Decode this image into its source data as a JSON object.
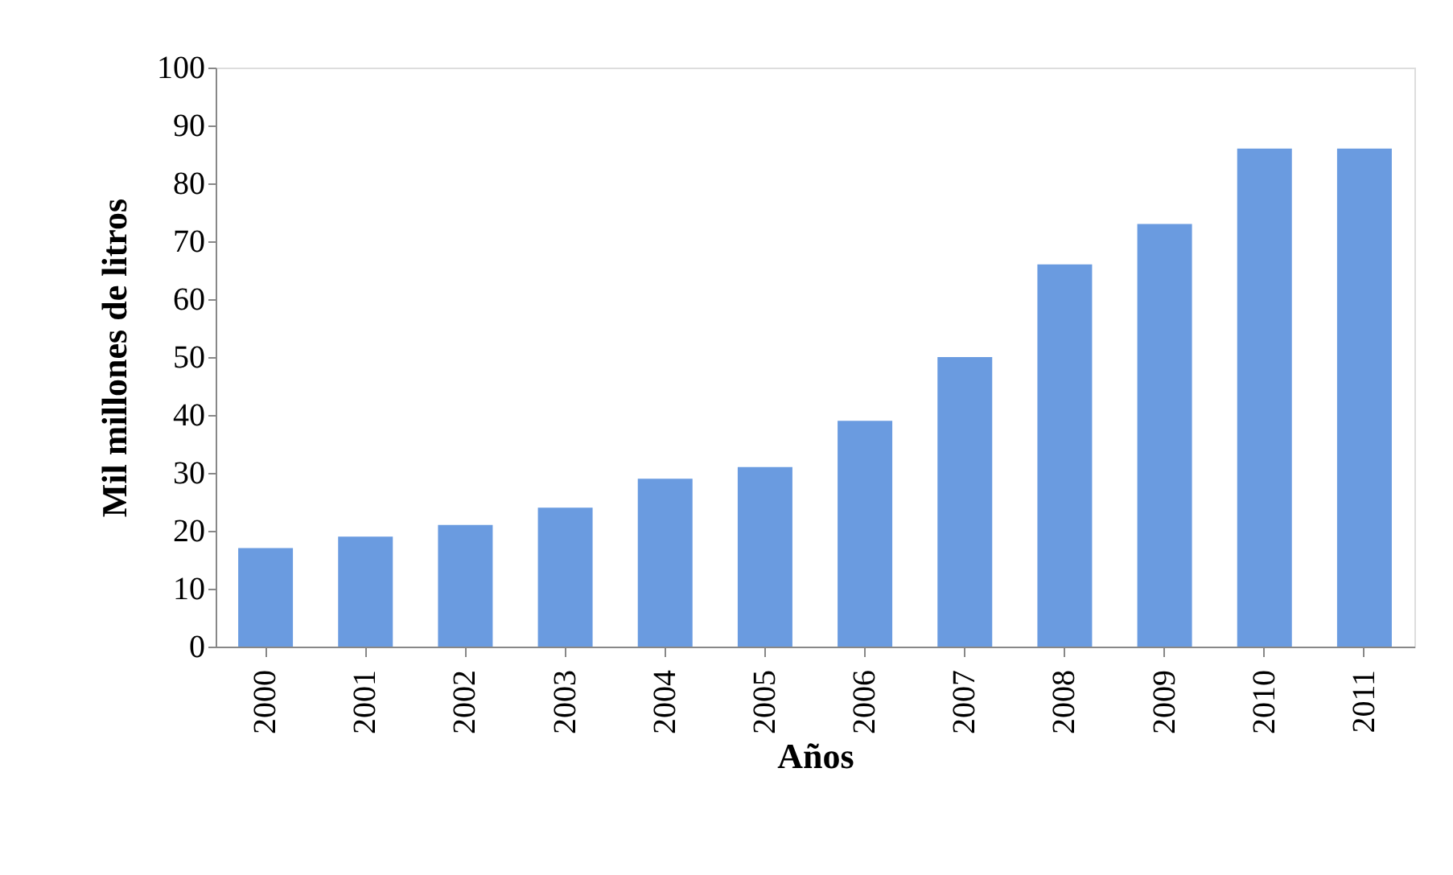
{
  "chart_data": {
    "type": "bar",
    "xlabel": "Años",
    "ylabel": "Mil millones de litros",
    "categories": [
      "2000",
      "2001",
      "2002",
      "2003",
      "2004",
      "2005",
      "2006",
      "2007",
      "2008",
      "2009",
      "2010",
      "2011"
    ],
    "values": [
      17,
      19,
      21,
      24,
      29,
      31,
      39,
      50,
      66,
      73,
      86,
      86
    ],
    "color": "#6a9be0",
    "ylim": [
      0,
      100
    ],
    "yticks": [
      0,
      10,
      20,
      30,
      40,
      50,
      60,
      70,
      80,
      90,
      100
    ],
    "grid": false
  }
}
